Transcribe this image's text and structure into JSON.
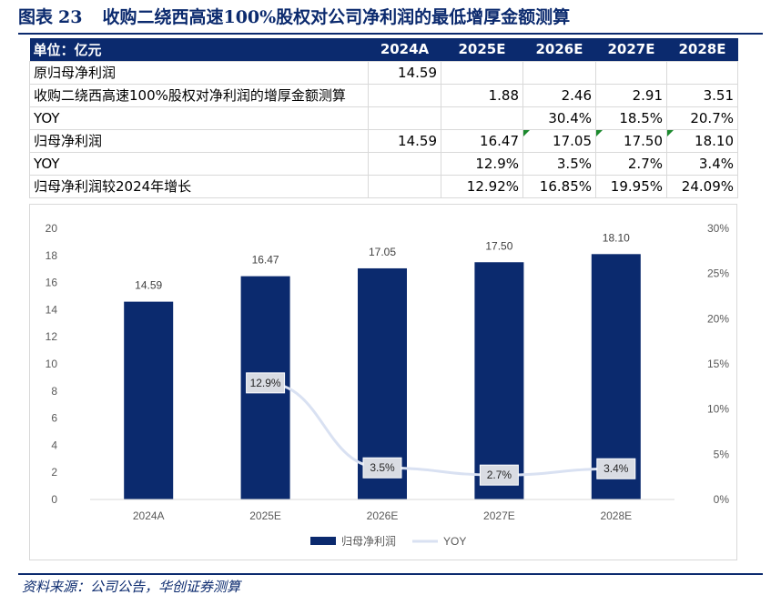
{
  "figure": {
    "label": "图表",
    "number": "23",
    "title": "收购二绕西高速100%股权对公司净利润的最低增厚金额测算"
  },
  "table": {
    "header": [
      "单位：亿元",
      "2024A",
      "2025E",
      "2026E",
      "2027E",
      "2028E"
    ],
    "rows": [
      {
        "label": "原归母净利润",
        "cells": [
          "14.59",
          "",
          "",
          "",
          ""
        ]
      },
      {
        "label": "收购二绕西高速100%股权对净利润的增厚金额测算",
        "cells": [
          "",
          "1.88",
          "2.46",
          "2.91",
          "3.51"
        ]
      },
      {
        "label": "YOY",
        "cells": [
          "",
          "",
          "30.4%",
          "18.5%",
          "20.7%"
        ]
      },
      {
        "label": "归母净利润",
        "cells": [
          "14.59",
          "16.47",
          "17.05",
          "17.50",
          "18.10"
        ],
        "flags": [
          false,
          false,
          true,
          true,
          true
        ]
      },
      {
        "label": "YOY",
        "cells": [
          "",
          "12.9%",
          "3.5%",
          "2.7%",
          "3.4%"
        ]
      },
      {
        "label": "归母净利润较2024年增长",
        "cells": [
          "",
          "12.92%",
          "16.85%",
          "19.95%",
          "24.09%"
        ]
      }
    ]
  },
  "chart_data": {
    "type": "bar",
    "categories": [
      "2024A",
      "2025E",
      "2026E",
      "2027E",
      "2028E"
    ],
    "series": [
      {
        "name": "归母净利润",
        "type": "bar",
        "axis": "left",
        "values": [
          14.59,
          16.47,
          17.05,
          17.5,
          18.1
        ],
        "labels": [
          "14.59",
          "16.47",
          "17.05",
          "17.50",
          "18.10"
        ],
        "color": "#0b2a6e"
      },
      {
        "name": "YOY",
        "type": "line",
        "axis": "right",
        "values": [
          null,
          12.9,
          3.5,
          2.7,
          3.4
        ],
        "labels": [
          "",
          "12.9%",
          "3.5%",
          "2.7%",
          "3.4%"
        ],
        "color": "#d9e1f2"
      }
    ],
    "ylim": [
      0,
      20
    ],
    "y_ticks": [
      "0",
      "2",
      "4",
      "6",
      "8",
      "10",
      "12",
      "14",
      "16",
      "18",
      "20"
    ],
    "y2lim": [
      0,
      30
    ],
    "y2_ticks": [
      "0%",
      "5%",
      "10%",
      "15%",
      "20%",
      "25%",
      "30%"
    ],
    "grid": false,
    "legend_position": "bottom"
  },
  "source": "资料来源：公司公告，华创证券测算",
  "colors": {
    "brand": "#0b2a6e",
    "yoy_line": "#d9e1f2",
    "flag": "#1c8a2e"
  }
}
